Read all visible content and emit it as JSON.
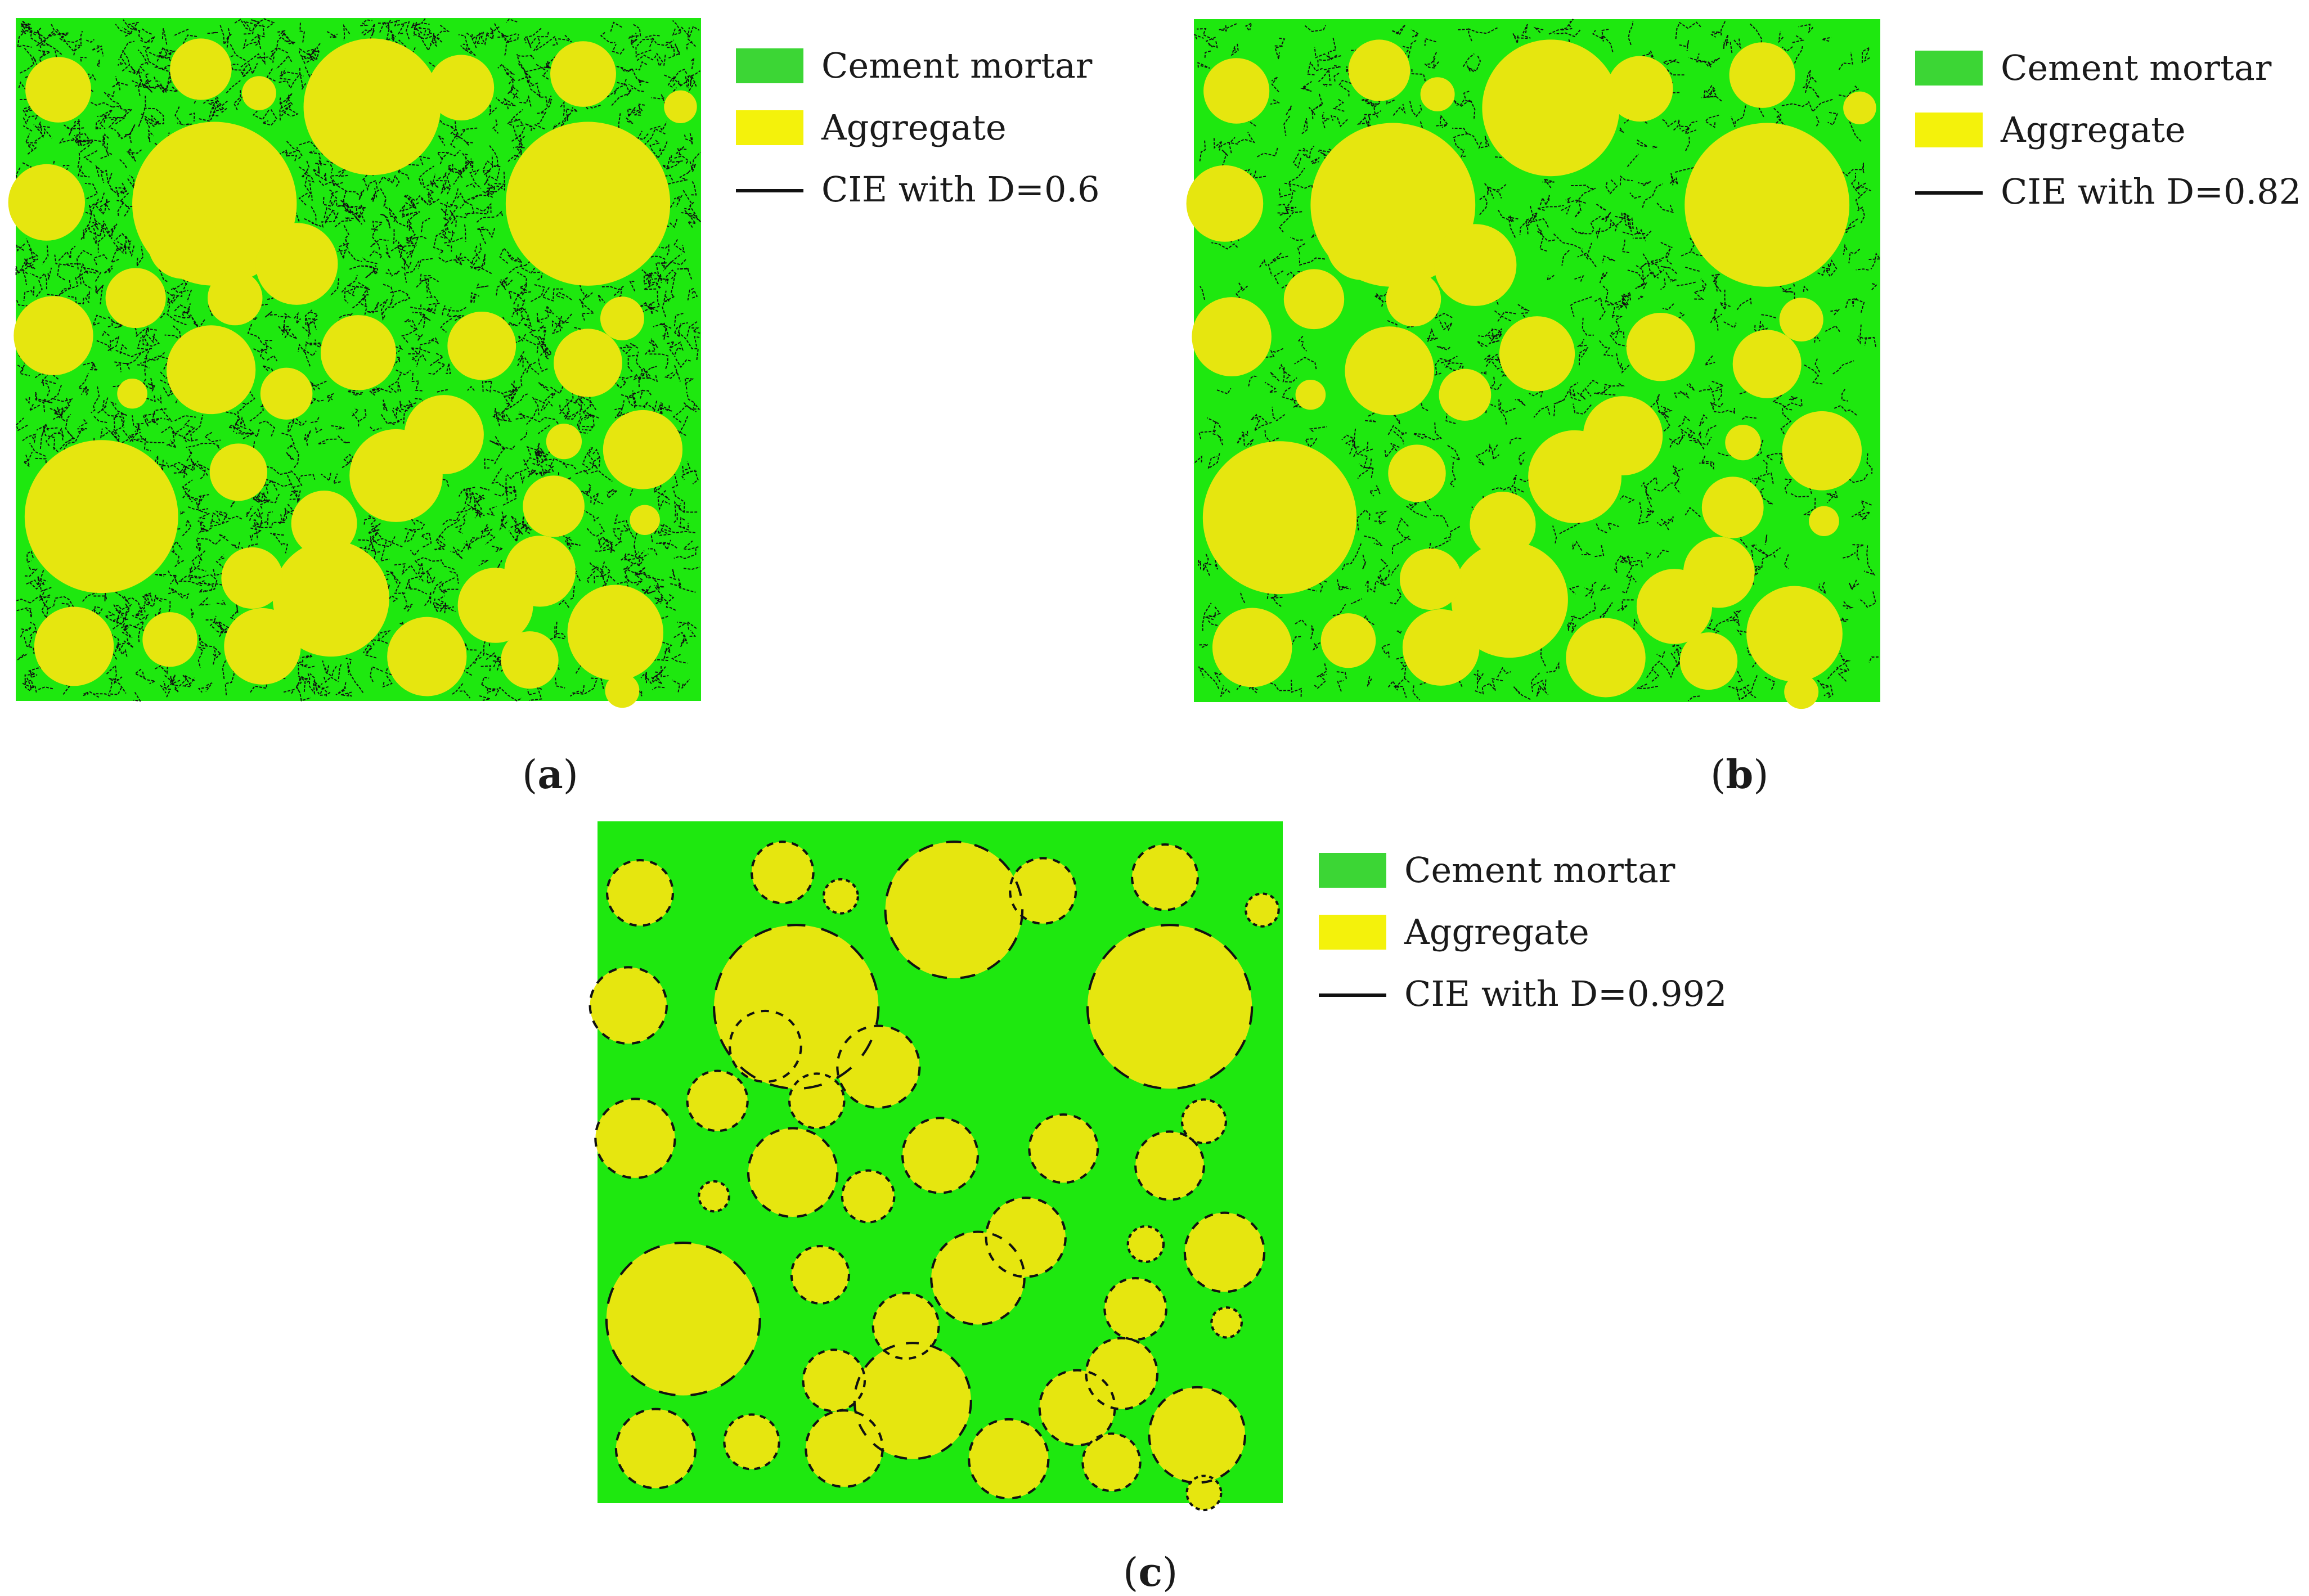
{
  "colors": {
    "mortar_fill": "#1ee80f",
    "mortar_legend": "#3cd635",
    "aggregate_fill": "#e6e60f",
    "aggregate_legend": "#f4f20b",
    "cie_line": "#111111"
  },
  "panels": [
    {
      "id": "a",
      "caption_open": "(",
      "caption_letter": "a",
      "caption_close": ")",
      "legend": {
        "mortar": "Cement mortar",
        "aggregate": "Aggregate",
        "cie": "CIE with D=0.6"
      },
      "damage": 0.6
    },
    {
      "id": "b",
      "caption_open": "(",
      "caption_letter": "b",
      "caption_close": ")",
      "legend": {
        "mortar": "Cement mortar",
        "aggregate": "Aggregate",
        "cie": "CIE with D=0.82"
      },
      "damage": 0.82
    },
    {
      "id": "c",
      "caption_open": "(",
      "caption_letter": "c",
      "caption_close": ")",
      "legend": {
        "mortar": "Cement mortar",
        "aggregate": "Aggregate",
        "cie": "CIE with D=0.992"
      },
      "damage": 0.992
    }
  ]
}
